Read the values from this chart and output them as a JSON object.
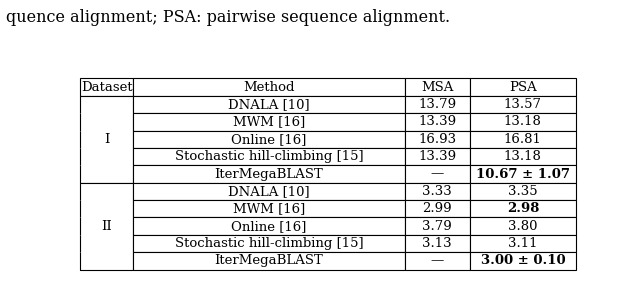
{
  "caption": "quence alignment; PSA: pairwise sequence alignment.",
  "caption_fontsize": 11.5,
  "header": [
    "Dataset",
    "Method",
    "MSA",
    "PSA"
  ],
  "rows": [
    [
      "I",
      "DNALA [10]",
      "13.79",
      "13.57",
      false,
      false
    ],
    [
      "I",
      "MWM [16]",
      "13.39",
      "13.18",
      false,
      false
    ],
    [
      "I",
      "Online [16]",
      "16.93",
      "16.81",
      false,
      false
    ],
    [
      "I",
      "Stochastic hill-climbing [15]",
      "13.39",
      "13.18",
      false,
      false
    ],
    [
      "I",
      "IterMegaBLAST",
      "—",
      "10.67 ± 1.07",
      false,
      true
    ],
    [
      "II",
      "DNALA [10]",
      "3.33",
      "3.35",
      false,
      false
    ],
    [
      "II",
      "MWM [16]",
      "2.99",
      "2.98",
      false,
      true
    ],
    [
      "II",
      "Online [16]",
      "3.79",
      "3.80",
      false,
      false
    ],
    [
      "II",
      "Stochastic hill-climbing [15]",
      "3.13",
      "3.11",
      false,
      false
    ],
    [
      "II",
      "IterMegaBLAST",
      "—",
      "3.00 ± 0.10",
      false,
      true
    ]
  ],
  "font_family": "serif",
  "fontsize": 9.5,
  "header_fontsize": 9.5,
  "bg_color": "#ffffff"
}
